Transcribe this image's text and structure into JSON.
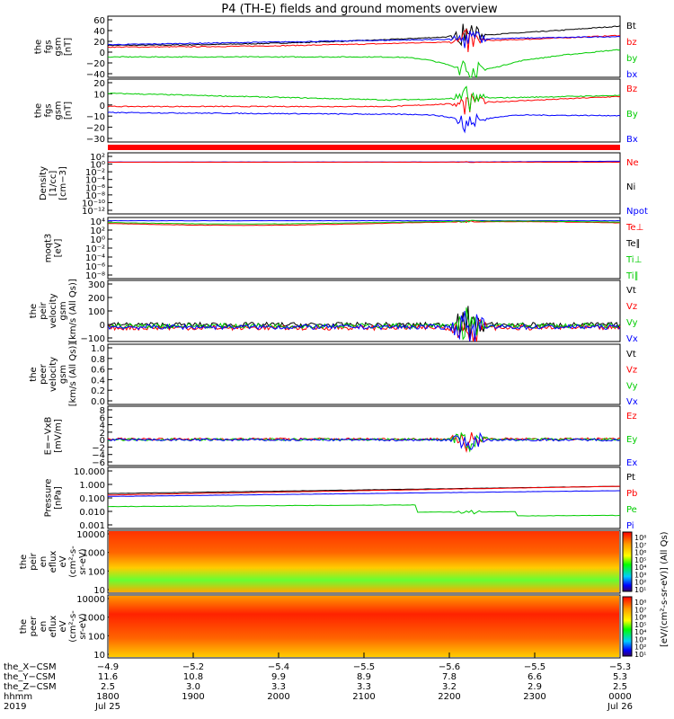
{
  "title": "P4 (TH-E) fields and ground moments overview",
  "colors": {
    "black": "#000000",
    "red": "#ff0000",
    "green": "#00cc00",
    "blue": "#0000ff"
  },
  "chart_data": [
    {
      "type": "line",
      "name": "fgs-gsm",
      "ylabel": [
        "the",
        "fgs",
        "gsm",
        "[nT]"
      ],
      "yticks": [
        "60",
        "40",
        "20",
        "0",
        "−20",
        "−40"
      ],
      "ylim": [
        -40,
        65
      ],
      "series": [
        {
          "name": "Bt",
          "color": "black"
        },
        {
          "name": "bz",
          "color": "red"
        },
        {
          "name": "by",
          "color": "green"
        },
        {
          "name": "bx",
          "color": "blue"
        }
      ]
    },
    {
      "type": "line",
      "name": "fgs-gsm-2",
      "ylabel": [
        "the",
        "fgs",
        "gsm",
        "[nT]"
      ],
      "yticks": [
        "20",
        "10",
        "0",
        "−10",
        "−20",
        "−30"
      ],
      "ylim": [
        -36,
        26
      ],
      "series": [
        {
          "name": "Bz",
          "color": "red"
        },
        {
          "name": "By",
          "color": "green"
        },
        {
          "name": "Bx",
          "color": "blue"
        }
      ]
    },
    {
      "type": "line",
      "name": "density",
      "ylabel": [
        "Density",
        "[1/cc]",
        "[cm−3]"
      ],
      "yticks": [
        "10²",
        "10⁰",
        "10⁻²",
        "10⁻⁴",
        "10⁻⁶",
        "10⁻⁸",
        "10⁻¹⁰",
        "10⁻¹²"
      ],
      "series": [
        {
          "name": "Ne",
          "color": "red"
        },
        {
          "name": "Ni",
          "color": "black"
        },
        {
          "name": "Npot",
          "color": "blue"
        }
      ]
    },
    {
      "type": "line",
      "name": "temperature",
      "ylabel": [
        "moqt3",
        "[eV]"
      ],
      "yticks": [
        "10⁴",
        "10²",
        "10⁰",
        "10⁻²",
        "10⁻⁴",
        "10⁻⁶",
        "10⁻⁸"
      ],
      "series": [
        {
          "name": "Te⊥",
          "color": "red"
        },
        {
          "name": "Te∥",
          "color": "black"
        },
        {
          "name": "Ti⊥",
          "color": "green"
        },
        {
          "name": "Ti∥",
          "color": "green"
        }
      ]
    },
    {
      "type": "line",
      "name": "peir-velocity",
      "ylabel": [
        "the",
        "peir",
        "velocity",
        "gsm",
        "[km/s (All Qs)]"
      ],
      "yticks": [
        "300",
        "200",
        "100",
        "0",
        "−100"
      ],
      "ylim": [
        -100,
        320
      ],
      "series": [
        {
          "name": "Vt",
          "color": "black"
        },
        {
          "name": "Vz",
          "color": "red"
        },
        {
          "name": "Vy",
          "color": "green"
        },
        {
          "name": "Vx",
          "color": "blue"
        }
      ]
    },
    {
      "type": "line",
      "name": "peer-velocity",
      "ylabel": [
        "the",
        "peer",
        "velocity",
        "gsm",
        "[km/s (All Qs)]"
      ],
      "yticks": [
        "1.0",
        "0.8",
        "0.6",
        "0.4",
        "0.2",
        "0.0"
      ],
      "ylim": [
        0,
        1
      ],
      "series": [
        {
          "name": "Vt",
          "color": "black"
        },
        {
          "name": "Vz",
          "color": "red"
        },
        {
          "name": "Vy",
          "color": "green"
        },
        {
          "name": "Vx",
          "color": "blue"
        }
      ]
    },
    {
      "type": "line",
      "name": "efield",
      "ylabel": [
        "E=−VxB",
        "[mV/m]"
      ],
      "yticks": [
        "8",
        "6",
        "4",
        "2",
        "0",
        "−2",
        "−4",
        "−6"
      ],
      "ylim": [
        -6.5,
        8.5
      ],
      "series": [
        {
          "name": "Ez",
          "color": "red"
        },
        {
          "name": "Ey",
          "color": "green"
        },
        {
          "name": "Ex",
          "color": "blue"
        }
      ]
    },
    {
      "type": "line",
      "name": "pressure",
      "ylabel": [
        "Pressure",
        "[nPa]"
      ],
      "yticks": [
        "10.000",
        "1.000",
        "0.100",
        "0.010",
        "0.001"
      ],
      "series": [
        {
          "name": "Pt",
          "color": "black"
        },
        {
          "name": "Pb",
          "color": "red"
        },
        {
          "name": "Pe",
          "color": "green"
        },
        {
          "name": "Pi",
          "color": "blue"
        }
      ]
    },
    {
      "type": "heatmap",
      "name": "peir-eflux",
      "ylabel": [
        "the",
        "peir",
        "en",
        "eflux",
        "eV",
        "(cm²-s-",
        "sr-eV)"
      ],
      "yticks": [
        "10000",
        "1000",
        "100",
        "10"
      ],
      "colorbar": [
        "10⁸",
        "10⁷",
        "10⁶",
        "10⁵",
        "10⁴",
        "10³",
        "10²",
        "10¹"
      ]
    },
    {
      "type": "heatmap",
      "name": "peer-eflux",
      "ylabel": [
        "the",
        "peer",
        "en",
        "eflux",
        "eV",
        "(cm²-s-",
        "sr-eV)"
      ],
      "yticks": [
        "10000",
        "1000",
        "100",
        "10"
      ],
      "colorbar": [
        "10⁸",
        "10⁷",
        "10⁶",
        "10⁵",
        "10⁴",
        "10³",
        "10²",
        "10¹"
      ]
    }
  ],
  "colorbar_label": "[eV/(cm²-s-sr-eV)] (All Qs)",
  "xaxis": {
    "row_labels": [
      "the_X−CSM",
      "the_Y−CSM",
      "the_Z−CSM",
      "hhmm",
      "2019"
    ],
    "columns": [
      [
        "−4.9",
        "11.6",
        "2.5",
        "1800",
        "Jul 25"
      ],
      [
        "−5.2",
        "10.8",
        "3.0",
        "1900",
        ""
      ],
      [
        "−5.4",
        "9.9",
        "3.3",
        "2000",
        ""
      ],
      [
        "−5.5",
        "8.9",
        "3.3",
        "2100",
        ""
      ],
      [
        "−5.6",
        "7.8",
        "3.2",
        "2200",
        ""
      ],
      [
        "−5.5",
        "6.6",
        "2.9",
        "2300",
        ""
      ],
      [
        "−5.3",
        "5.3",
        "2.5",
        "0000",
        "Jul 26"
      ]
    ]
  }
}
